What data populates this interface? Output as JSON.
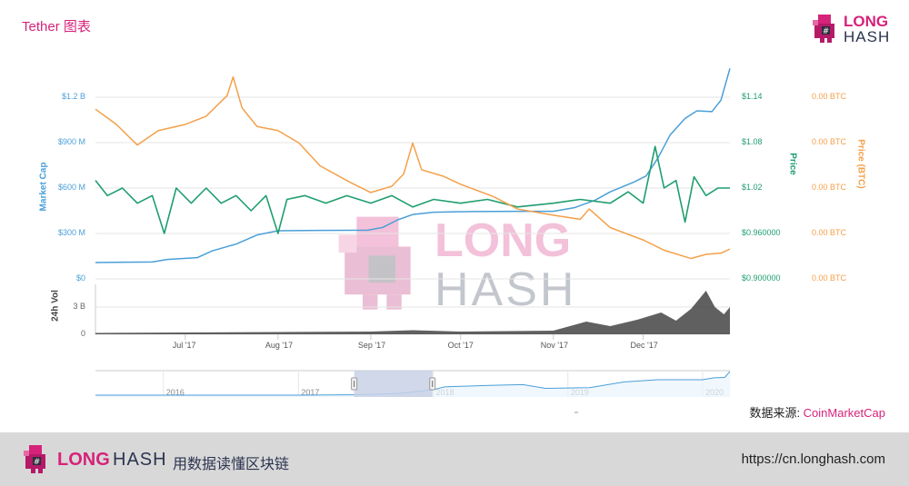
{
  "header": {
    "title": "Tether 图表",
    "logo": {
      "word1": "LONG",
      "word2": "HASH"
    }
  },
  "watermark": {
    "word1": "LONG",
    "word2": "HASH"
  },
  "source": {
    "label": "数据来源: ",
    "link": "CoinMarketCap"
  },
  "footer": {
    "logo_word1": "LONG",
    "logo_word2": "HASH",
    "slogan": "用数据读懂区块链",
    "url": "https://cn.longhash.com"
  },
  "colors": {
    "market_cap": "#4a9fd8",
    "price_usd": "#1f9e6e",
    "price_btc": "#f4a04a",
    "volume": "#444444",
    "brand": "#d6237a",
    "navigator_selection": "#c8d1e6"
  },
  "chart_data": {
    "type": "line",
    "x_ticks": [
      "Jul '17",
      "Aug '17",
      "Sep '17",
      "Oct '17",
      "Nov '17",
      "Dec '17"
    ],
    "x_tick_dates": [
      "2017-07-01",
      "2017-08-01",
      "2017-09-01",
      "2017-10-01",
      "2017-11-01",
      "2017-12-01"
    ],
    "xlim": [
      "2017-06-01",
      "2017-12-30"
    ],
    "axes": {
      "market_cap": {
        "label": "Market Cap",
        "ticks": [
          "$0",
          "$300 M",
          "$600 M",
          "$900 M",
          "$1.2 B"
        ],
        "tick_values": [
          0,
          300,
          600,
          900,
          1200
        ],
        "ylim": [
          0,
          1200
        ],
        "unit": "million USD"
      },
      "price_usd": {
        "label": "Price",
        "ticks": [
          "$0.900000",
          "$0.960000",
          "$1.02",
          "$1.08",
          "$1.14"
        ],
        "tick_values": [
          0.9,
          0.96,
          1.02,
          1.08,
          1.14
        ],
        "ylim": [
          0.9,
          1.14
        ]
      },
      "price_btc": {
        "label": "Price (BTC)",
        "ticks": [
          "0.00 BTC",
          "0.00 BTC",
          "0.00 BTC",
          "0.00 BTC",
          "0.00 BTC"
        ],
        "ylim": [
          5.6e-06,
          0.000446
        ]
      },
      "volume": {
        "label": "24h Vol",
        "ticks": [
          "0",
          "3 B"
        ],
        "tick_values": [
          0,
          3
        ],
        "ylim": [
          0,
          5.5
        ],
        "unit": "billion USD"
      }
    },
    "series": [
      {
        "name": "Market Cap",
        "axis": "market_cap",
        "points": [
          [
            "2017-06-01",
            108
          ],
          [
            "2017-06-20",
            112
          ],
          [
            "2017-06-25",
            128
          ],
          [
            "2017-07-05",
            140
          ],
          [
            "2017-07-10",
            185
          ],
          [
            "2017-07-18",
            230
          ],
          [
            "2017-07-25",
            290
          ],
          [
            "2017-08-01",
            318
          ],
          [
            "2017-08-15",
            320
          ],
          [
            "2017-08-31",
            322
          ],
          [
            "2017-09-05",
            340
          ],
          [
            "2017-09-10",
            390
          ],
          [
            "2017-09-15",
            425
          ],
          [
            "2017-09-22",
            440
          ],
          [
            "2017-10-05",
            445
          ],
          [
            "2017-10-20",
            446
          ],
          [
            "2017-11-01",
            446
          ],
          [
            "2017-11-08",
            470
          ],
          [
            "2017-11-15",
            520
          ],
          [
            "2017-11-20",
            575
          ],
          [
            "2017-11-28",
            640
          ],
          [
            "2017-12-02",
            680
          ],
          [
            "2017-12-06",
            800
          ],
          [
            "2017-12-10",
            950
          ],
          [
            "2017-12-15",
            1060
          ],
          [
            "2017-12-19",
            1110
          ],
          [
            "2017-12-24",
            1105
          ],
          [
            "2017-12-27",
            1180
          ],
          [
            "2017-12-30",
            1390
          ]
        ]
      },
      {
        "name": "Price",
        "axis": "price_usd",
        "points": [
          [
            "2017-06-01",
            1.03
          ],
          [
            "2017-06-05",
            1.01
          ],
          [
            "2017-06-10",
            1.02
          ],
          [
            "2017-06-15",
            1.0
          ],
          [
            "2017-06-20",
            1.01
          ],
          [
            "2017-06-24",
            0.96
          ],
          [
            "2017-06-28",
            1.02
          ],
          [
            "2017-07-03",
            1.0
          ],
          [
            "2017-07-08",
            1.02
          ],
          [
            "2017-07-13",
            1.0
          ],
          [
            "2017-07-18",
            1.01
          ],
          [
            "2017-07-23",
            0.99
          ],
          [
            "2017-07-28",
            1.01
          ],
          [
            "2017-08-01",
            0.96
          ],
          [
            "2017-08-04",
            1.005
          ],
          [
            "2017-08-10",
            1.01
          ],
          [
            "2017-08-17",
            1.0
          ],
          [
            "2017-08-24",
            1.01
          ],
          [
            "2017-09-01",
            1.0
          ],
          [
            "2017-09-08",
            1.01
          ],
          [
            "2017-09-15",
            0.995
          ],
          [
            "2017-09-22",
            1.005
          ],
          [
            "2017-10-01",
            1.0
          ],
          [
            "2017-10-10",
            1.005
          ],
          [
            "2017-10-20",
            0.995
          ],
          [
            "2017-11-01",
            1.0
          ],
          [
            "2017-11-10",
            1.005
          ],
          [
            "2017-11-20",
            1.0
          ],
          [
            "2017-11-26",
            1.015
          ],
          [
            "2017-12-01",
            1.0
          ],
          [
            "2017-12-05",
            1.075
          ],
          [
            "2017-12-08",
            1.02
          ],
          [
            "2017-12-12",
            1.03
          ],
          [
            "2017-12-15",
            0.975
          ],
          [
            "2017-12-18",
            1.035
          ],
          [
            "2017-12-22",
            1.01
          ],
          [
            "2017-12-26",
            1.02
          ],
          [
            "2017-12-30",
            1.02
          ]
        ]
      },
      {
        "name": "Price (BTC)",
        "axis": "price_btc",
        "points": [
          [
            "2017-06-01",
            0.000417
          ],
          [
            "2017-06-08",
            0.00038
          ],
          [
            "2017-06-15",
            0.00033
          ],
          [
            "2017-06-22",
            0.000365
          ],
          [
            "2017-07-01",
            0.00038
          ],
          [
            "2017-07-08",
            0.0004
          ],
          [
            "2017-07-15",
            0.00045
          ],
          [
            "2017-07-17",
            0.000495
          ],
          [
            "2017-07-20",
            0.00042
          ],
          [
            "2017-07-25",
            0.000375
          ],
          [
            "2017-08-01",
            0.000365
          ],
          [
            "2017-08-08",
            0.000335
          ],
          [
            "2017-08-15",
            0.00028
          ],
          [
            "2017-08-25",
            0.00024
          ],
          [
            "2017-09-01",
            0.000215
          ],
          [
            "2017-09-08",
            0.00023
          ],
          [
            "2017-09-12",
            0.00026
          ],
          [
            "2017-09-15",
            0.000335
          ],
          [
            "2017-09-18",
            0.00027
          ],
          [
            "2017-09-25",
            0.000255
          ],
          [
            "2017-10-01",
            0.000235
          ],
          [
            "2017-10-12",
            0.000205
          ],
          [
            "2017-10-20",
            0.000175
          ],
          [
            "2017-11-01",
            0.00016
          ],
          [
            "2017-11-10",
            0.00015
          ],
          [
            "2017-11-13",
            0.000175
          ],
          [
            "2017-11-20",
            0.00013
          ],
          [
            "2017-12-01",
            0.0001
          ],
          [
            "2017-12-08",
            7.5e-05
          ],
          [
            "2017-12-17",
            5.5e-05
          ],
          [
            "2017-12-22",
            6.5e-05
          ],
          [
            "2017-12-27",
            6.8e-05
          ],
          [
            "2017-12-30",
            7.8e-05
          ]
        ]
      },
      {
        "name": "24h Vol",
        "axis": "volume",
        "points": [
          [
            "2017-06-01",
            0.15
          ],
          [
            "2017-07-01",
            0.2
          ],
          [
            "2017-08-01",
            0.25
          ],
          [
            "2017-09-01",
            0.3
          ],
          [
            "2017-09-15",
            0.45
          ],
          [
            "2017-10-01",
            0.3
          ],
          [
            "2017-11-01",
            0.4
          ],
          [
            "2017-11-12",
            1.4
          ],
          [
            "2017-11-20",
            0.9
          ],
          [
            "2017-11-29",
            1.6
          ],
          [
            "2017-12-07",
            2.4
          ],
          [
            "2017-12-12",
            1.5
          ],
          [
            "2017-12-17",
            2.8
          ],
          [
            "2017-12-22",
            4.8
          ],
          [
            "2017-12-25",
            3.0
          ],
          [
            "2017-12-28",
            2.2
          ],
          [
            "2017-12-30",
            3.0
          ]
        ]
      }
    ],
    "navigator": {
      "x_ticks": [
        "2016",
        "2017",
        "2018",
        "2019",
        "2020"
      ],
      "x_tick_dates": [
        "2016-01-01",
        "2017-01-01",
        "2018-01-01",
        "2019-01-01",
        "2020-01-01"
      ],
      "xlim": [
        "2015-07-01",
        "2020-03-15"
      ],
      "selection": [
        "2017-06-01",
        "2017-12-30"
      ],
      "ylim": [
        0,
        6.5
      ],
      "points": [
        [
          "2015-07-01",
          0.0
        ],
        [
          "2016-06-01",
          0.01
        ],
        [
          "2017-01-01",
          0.01
        ],
        [
          "2017-06-01",
          0.1
        ],
        [
          "2017-10-01",
          0.45
        ],
        [
          "2017-12-30",
          1.4
        ],
        [
          "2018-02-01",
          2.2
        ],
        [
          "2018-06-01",
          2.6
        ],
        [
          "2018-09-01",
          2.8
        ],
        [
          "2018-11-01",
          1.8
        ],
        [
          "2019-01-01",
          1.9
        ],
        [
          "2019-03-01",
          2.0
        ],
        [
          "2019-06-01",
          3.5
        ],
        [
          "2019-09-01",
          4.1
        ],
        [
          "2020-01-01",
          4.1
        ],
        [
          "2020-02-01",
          4.6
        ],
        [
          "2020-03-01",
          4.7
        ],
        [
          "2020-03-15",
          6.3
        ]
      ]
    }
  }
}
